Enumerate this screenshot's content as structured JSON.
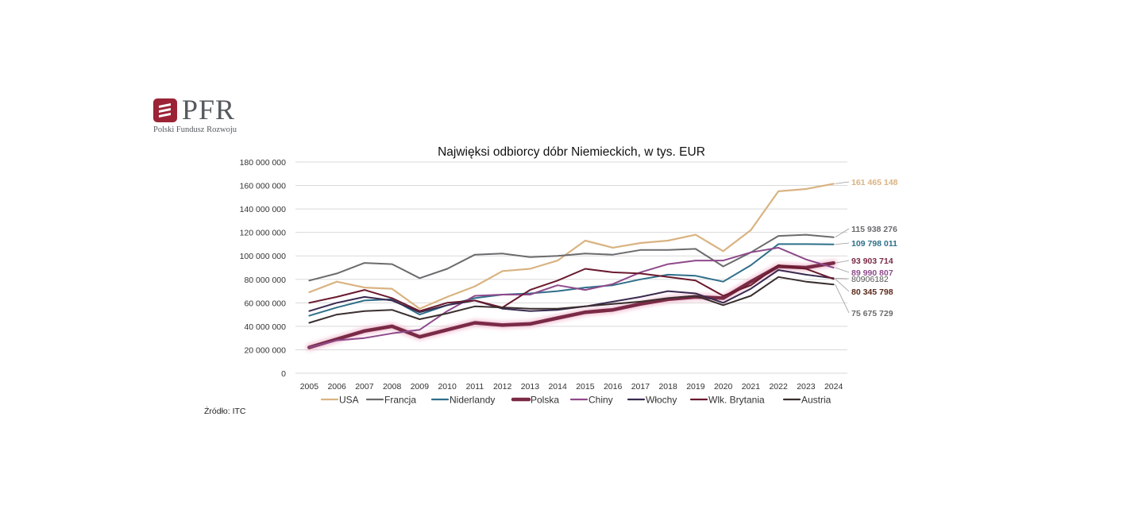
{
  "brand": {
    "name": "PFR",
    "subtitle": "Polski Fundusz Rozwoju",
    "color": "#9b2335"
  },
  "source": "Źródło: ITC",
  "chart_data": {
    "type": "line",
    "title": "Najwięksi odbiorcy dóbr Niemieckich, w tys.  EUR",
    "xlabel": "",
    "ylabel": "",
    "ylim": [
      0,
      180000000
    ],
    "yticks": [
      0,
      20000000,
      40000000,
      60000000,
      80000000,
      100000000,
      120000000,
      140000000,
      160000000,
      180000000
    ],
    "ytick_labels": [
      "0",
      "20 000 000",
      "40 000 000",
      "60 000 000",
      "80 000 000",
      "100 000 000",
      "120 000 000",
      "140 000 000",
      "160 000 000",
      "180 000 000"
    ],
    "grid": true,
    "legend_position": "bottom",
    "categories": [
      "2005",
      "2006",
      "2007",
      "2008",
      "2009",
      "2010",
      "2011",
      "2012",
      "2013",
      "2014",
      "2015",
      "2016",
      "2017",
      "2018",
      "2019",
      "2020",
      "2021",
      "2022",
      "2023",
      "2024"
    ],
    "series": [
      {
        "name": "USA",
        "color": "#d9b382",
        "width": 2.2,
        "end_label": "161 465 148",
        "label_color": "#d9b382",
        "label_bold": true,
        "values": [
          69000000,
          78000000,
          73000000,
          72000000,
          55000000,
          65000000,
          74000000,
          87000000,
          89000000,
          96000000,
          113000000,
          107000000,
          111000000,
          113000000,
          118000000,
          104000000,
          122000000,
          155000000,
          157000000,
          161465148
        ]
      },
      {
        "name": "Francja",
        "color": "#6b6b6e",
        "width": 2.0,
        "end_label": "115 938 276",
        "label_color": "#6b6b6e",
        "label_bold": true,
        "values": [
          79000000,
          85000000,
          94000000,
          93000000,
          81000000,
          89000000,
          101000000,
          102000000,
          99000000,
          100000000,
          102000000,
          101000000,
          105000000,
          105000000,
          106000000,
          91000000,
          103000000,
          117000000,
          118000000,
          115938276
        ]
      },
      {
        "name": "Niderlandy",
        "color": "#2f6f8a",
        "width": 2.0,
        "end_label": "109 798 011",
        "label_color": "#2f6f8a",
        "label_bold": true,
        "values": [
          49000000,
          56000000,
          62000000,
          63000000,
          50000000,
          58000000,
          64000000,
          67000000,
          68000000,
          70000000,
          73000000,
          75000000,
          80000000,
          84000000,
          83000000,
          78000000,
          92000000,
          110000000,
          110000000,
          109798011
        ]
      },
      {
        "name": "Polska",
        "color": "#7a2a45",
        "width": 4.5,
        "glow": true,
        "end_label": "93 903 714",
        "label_color": "#7a2a45",
        "label_bold": true,
        "values": [
          22000000,
          29000000,
          36000000,
          40000000,
          31000000,
          37000000,
          43000000,
          41000000,
          42000000,
          47000000,
          52000000,
          54000000,
          59000000,
          63000000,
          65000000,
          64000000,
          78000000,
          91000000,
          90000000,
          93903714
        ]
      },
      {
        "name": "Chiny",
        "color": "#8e4a8b",
        "width": 2.0,
        "end_label": "89 990 807",
        "label_color": "#8e4a8b",
        "label_bold": true,
        "values": [
          22000000,
          28000000,
          30000000,
          34000000,
          37000000,
          53000000,
          66000000,
          67000000,
          67000000,
          75000000,
          71000000,
          76000000,
          86000000,
          93000000,
          96000000,
          96000000,
          103000000,
          107000000,
          97000000,
          89990807
        ]
      },
      {
        "name": "Włochy",
        "color": "#3a2a4f",
        "width": 2.0,
        "end_label": "80906182",
        "label_color": "#555555",
        "label_bold": false,
        "values": [
          53000000,
          60000000,
          65000000,
          62000000,
          52000000,
          58000000,
          62000000,
          55000000,
          53000000,
          54000000,
          57000000,
          61000000,
          65000000,
          70000000,
          68000000,
          60000000,
          72000000,
          88000000,
          84000000,
          80906182
        ]
      },
      {
        "name": "Wlk. Brytania",
        "color": "#6a1a2e",
        "width": 2.0,
        "end_label": "80 345 798",
        "label_color": "#5a2a1a",
        "label_bold": true,
        "values": [
          60000000,
          65000000,
          71000000,
          64000000,
          53000000,
          60000000,
          62000000,
          56000000,
          71000000,
          79000000,
          89000000,
          86000000,
          85000000,
          82000000,
          79000000,
          66000000,
          75000000,
          92000000,
          89000000,
          80345798
        ]
      },
      {
        "name": "Austria",
        "color": "#3a2f2f",
        "width": 2.0,
        "end_label": "75 675 729",
        "label_color": "#6b6b6e",
        "label_bold": true,
        "values": [
          43000000,
          50000000,
          53000000,
          54000000,
          46000000,
          51000000,
          57000000,
          56000000,
          55000000,
          55000000,
          57000000,
          59000000,
          61000000,
          64000000,
          66000000,
          58000000,
          66000000,
          82000000,
          78000000,
          75675729
        ]
      }
    ]
  }
}
